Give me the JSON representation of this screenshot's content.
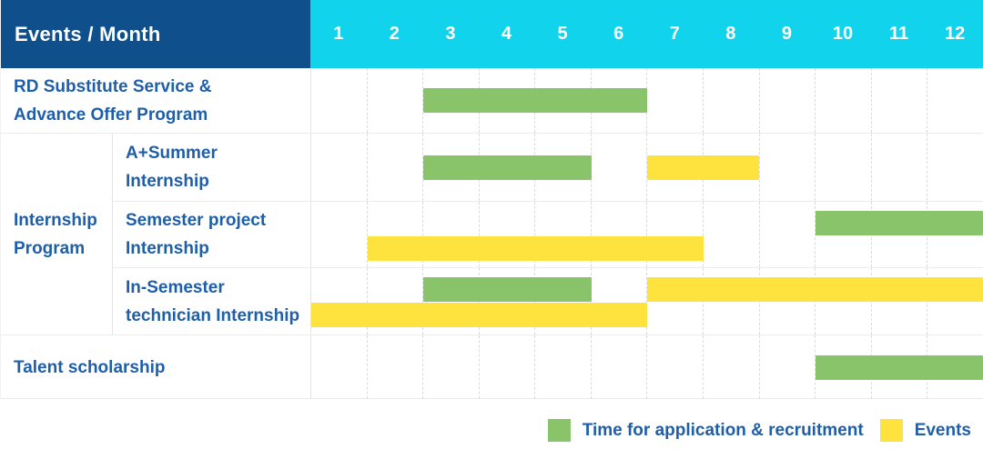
{
  "header": {
    "title": "Events / Month"
  },
  "colors": {
    "header_bg": "#0e4f8c",
    "months_bg": "#12d3ec",
    "header_text": "#ffffff",
    "label_text": "#1f5fa9",
    "application_green": "#8ac46a",
    "events_yellow": "#fee23e"
  },
  "group_column": {
    "label": "Internship Program",
    "label_lines": [
      "Internship",
      "Program"
    ]
  },
  "legend": {
    "items": [
      {
        "key": "application",
        "label": "Time for application & recruitment",
        "color": "#8ac46a"
      },
      {
        "key": "event",
        "label": "Events",
        "color": "#fee23e"
      }
    ]
  },
  "chart_data": {
    "type": "bar",
    "subtype": "gantt-table",
    "title": "Events / Month",
    "x_axis": {
      "unit": "month",
      "ticks": [
        "1",
        "2",
        "3",
        "4",
        "5",
        "6",
        "7",
        "8",
        "9",
        "10",
        "11",
        "12"
      ],
      "range": [
        1,
        12
      ]
    },
    "legend": [
      "Time for application & recruitment",
      "Events"
    ],
    "rows": [
      {
        "category": "RD Substitute Service & Advance Offer Program",
        "label_lines": [
          "RD Substitute Service &",
          "Advance Offer Program"
        ],
        "group": null,
        "tracks": 1,
        "spans": [
          {
            "series": "Time for application & recruitment",
            "start_month": 3,
            "end_month": 6,
            "row_line": 0
          }
        ]
      },
      {
        "category": "A+Summer Internship",
        "label_lines": [
          "A+Summer",
          "Internship"
        ],
        "group": "Internship Program",
        "tracks": 1,
        "spans": [
          {
            "series": "Time for application & recruitment",
            "start_month": 3,
            "end_month": 5,
            "row_line": 0
          },
          {
            "series": "Events",
            "start_month": 7,
            "end_month": 8,
            "row_line": 0
          }
        ]
      },
      {
        "category": "Semester project Internship",
        "label_lines": [
          "Semester project",
          "Internship"
        ],
        "group": "Internship Program",
        "tracks": 2,
        "spans": [
          {
            "series": "Time for application & recruitment",
            "start_month": 10,
            "end_month": 12,
            "row_line": 0
          },
          {
            "series": "Events",
            "start_month": 2,
            "end_month": 7,
            "row_line": 1
          }
        ]
      },
      {
        "category": "In-Semester technician Internship",
        "label_lines": [
          "In-Semester",
          "technician Internship"
        ],
        "group": "Internship Program",
        "tracks": 2,
        "spans": [
          {
            "series": "Time for application & recruitment",
            "start_month": 3,
            "end_month": 5,
            "row_line": 0
          },
          {
            "series": "Events",
            "start_month": 7,
            "end_month": 12,
            "row_line": 0
          },
          {
            "series": "Events",
            "start_month": 1,
            "end_month": 6,
            "row_line": 1
          }
        ]
      },
      {
        "category": "Talent scholarship",
        "label_lines": [
          "Talent scholarship"
        ],
        "group": null,
        "tracks": 1,
        "spans": [
          {
            "series": "Time for application & recruitment",
            "start_month": 10,
            "end_month": 12,
            "row_line": 0
          }
        ]
      }
    ]
  }
}
